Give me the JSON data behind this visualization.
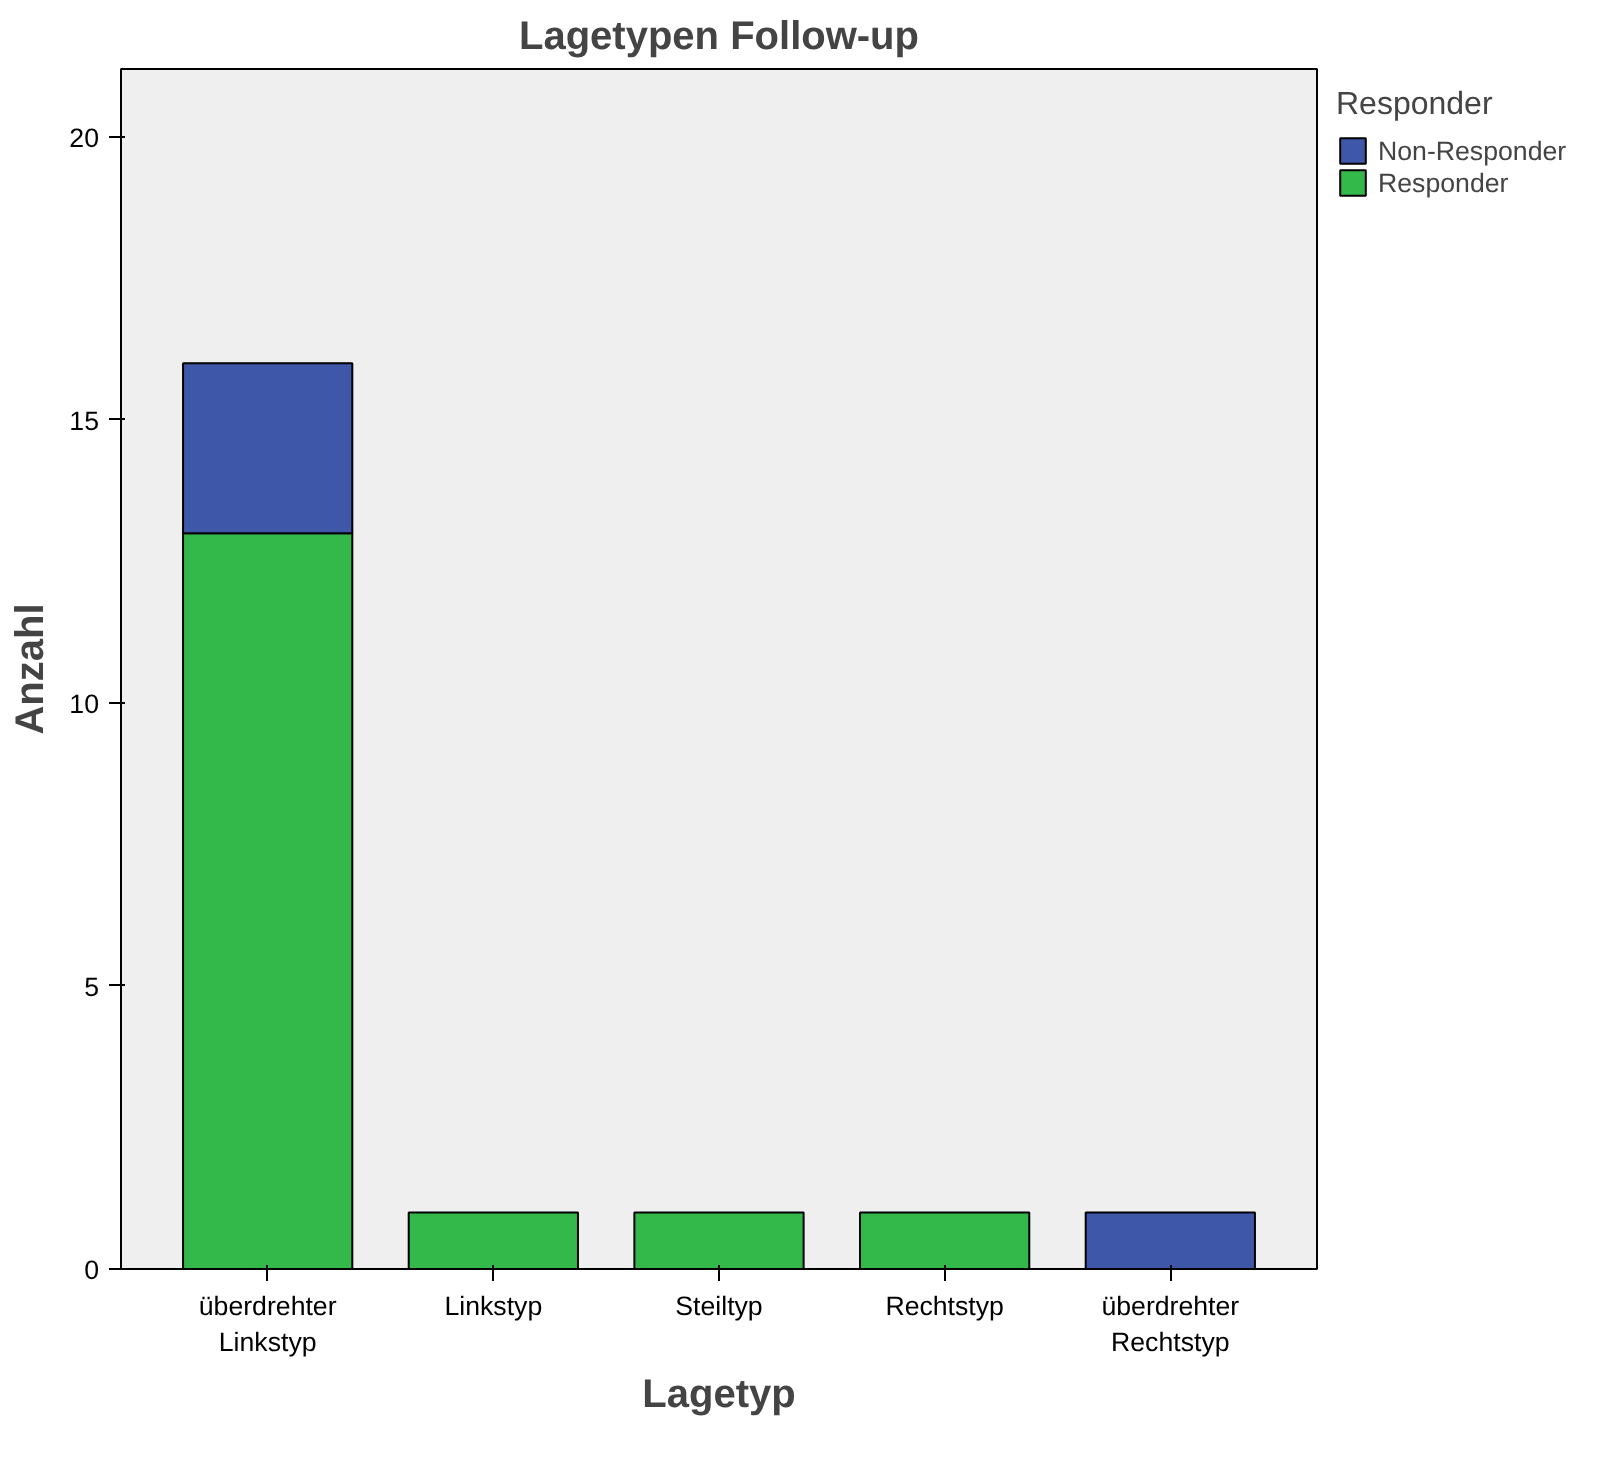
{
  "chart_data": {
    "type": "bar",
    "title": "Lagetypen Follow-up",
    "xlabel": "Lagetyp",
    "ylabel": "Anzahl",
    "legend_title": "Responder",
    "categories": [
      "überdrehter\nLinkstyp",
      "Linkstyp",
      "Steiltyp",
      "Rechtstyp",
      "überdrehter\nRechtstyp"
    ],
    "stacked": true,
    "ylim": [
      0,
      21.2
    ],
    "yticks": [
      0,
      5,
      10,
      15,
      20
    ],
    "grid": false,
    "legend": "top right",
    "series": [
      {
        "name": "Responder",
        "color": "#33b84a",
        "values": [
          13,
          1,
          1,
          1,
          null
        ]
      },
      {
        "name": "Non-Responder",
        "color": "#3f57a8",
        "values": [
          3,
          null,
          null,
          null,
          1
        ]
      }
    ]
  }
}
